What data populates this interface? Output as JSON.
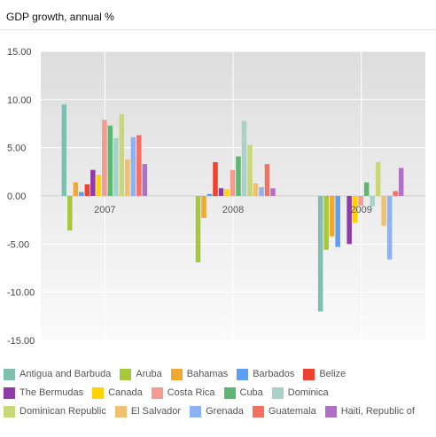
{
  "header": {
    "title": "GDP growth, annual %"
  },
  "chart_data": {
    "type": "bar",
    "title": "GDP growth, annual %",
    "categories": [
      "2007",
      "2008",
      "2009"
    ],
    "ylim": [
      -15,
      15
    ],
    "yticks": [
      "15.00",
      "10.00",
      "5.00",
      "0.00",
      "-5.00",
      "-10.00",
      "-15.00"
    ],
    "ytick_values": [
      15,
      10,
      5,
      0,
      -5,
      -10,
      -15
    ],
    "grid": true,
    "legend_position": "bottom",
    "series": [
      {
        "name": "Antigua and Barbuda",
        "color": "#7fbfb0",
        "values": [
          9.5,
          0.0,
          -12.0
        ]
      },
      {
        "name": "Aruba",
        "color": "#a8c83c",
        "values": [
          -3.6,
          -6.9,
          -5.6
        ]
      },
      {
        "name": "Bahamas",
        "color": "#f0a830",
        "values": [
          1.4,
          -2.3,
          -4.2
        ]
      },
      {
        "name": "Barbados",
        "color": "#5a9ef5",
        "values": [
          0.4,
          0.2,
          -5.3
        ]
      },
      {
        "name": "Belize",
        "color": "#f04030",
        "values": [
          1.2,
          3.5,
          0.0
        ]
      },
      {
        "name": "The Bermudas",
        "color": "#8e3aa8",
        "values": [
          2.7,
          0.8,
          -5.0
        ]
      },
      {
        "name": "Canada",
        "color": "#ffd200",
        "values": [
          2.2,
          0.7,
          -2.8
        ]
      },
      {
        "name": "Costa Rica",
        "color": "#f59a90",
        "values": [
          7.9,
          2.7,
          -1.0
        ]
      },
      {
        "name": "Cuba",
        "color": "#5cb870",
        "values": [
          7.3,
          4.1,
          1.4
        ]
      },
      {
        "name": "Dominica",
        "color": "#a8d2c8",
        "values": [
          6.0,
          7.8,
          -1.1
        ]
      },
      {
        "name": "Dominican Republic",
        "color": "#c8d878",
        "values": [
          8.5,
          5.3,
          3.5
        ]
      },
      {
        "name": "El Salvador",
        "color": "#f0c070",
        "values": [
          3.8,
          1.3,
          -3.1
        ]
      },
      {
        "name": "Grenada",
        "color": "#8cb4f5",
        "values": [
          6.1,
          0.9,
          -6.6
        ]
      },
      {
        "name": "Guatemala",
        "color": "#f57060",
        "values": [
          6.3,
          3.3,
          0.5
        ]
      },
      {
        "name": "Haiti, Republic of",
        "color": "#b070c8",
        "values": [
          3.3,
          0.8,
          2.9
        ]
      }
    ]
  }
}
